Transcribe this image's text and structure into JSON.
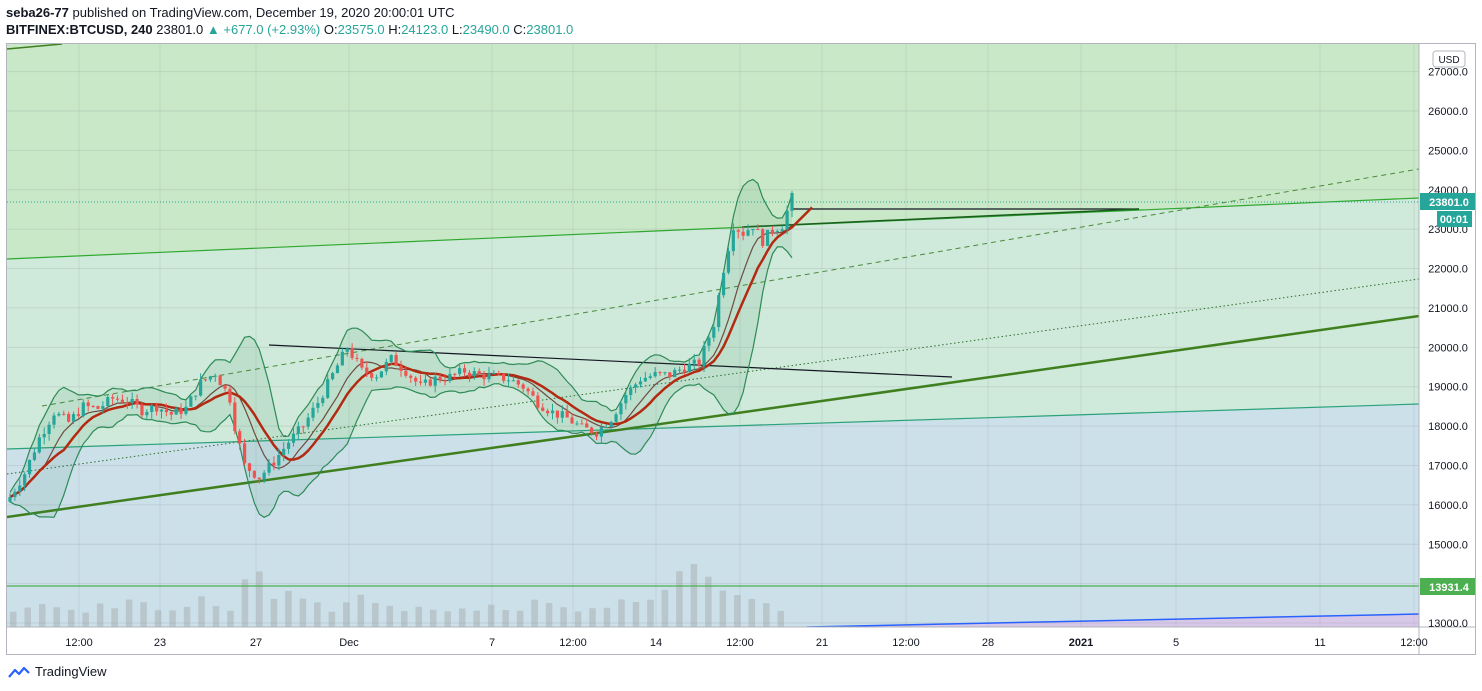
{
  "header": {
    "publisher": "seba26-77",
    "published_text": " published on TradingView.com, December 19, 2020 20:00:01 UTC",
    "symbol": "BITFINEX:BTCUSD, 240",
    "last": "23801.0",
    "change": "▲ +677.0 (+2.93%)",
    "o_label": "O:",
    "o_value": "23575.0",
    "h_label": "H:",
    "h_value": "24123.0",
    "l_label": "L:",
    "l_value": "23490.0",
    "c_label": "C:",
    "c_value": "23801.0"
  },
  "footer": {
    "brand": "TradingView",
    "logo_icon": "tradingview-logo-icon"
  },
  "colors": {
    "up": "#26a69a",
    "down": "#ef5350",
    "price_label_bg": "#26a69a",
    "support_label_bg": "#4caf50",
    "ma_slow": "#b22a12",
    "ma_fast": "#6d4c41",
    "bb": "#2e8b57",
    "trendline": "#3f7f1e"
  },
  "chart_data": {
    "type": "candlestick",
    "currency": "USD",
    "ylim": [
      12900,
      27700
    ],
    "y_ticks": [
      "13000.0",
      "14000.0",
      "15000.0",
      "16000.0",
      "17000.0",
      "18000.0",
      "19000.0",
      "20000.0",
      "21000.0",
      "22000.0",
      "23000.0",
      "24000.0",
      "25000.0",
      "26000.0",
      "27000.0"
    ],
    "x_ticks": [
      "12:00",
      "23",
      "27",
      "Dec",
      "7",
      "12:00",
      "14",
      "12:00",
      "21",
      "12:00",
      "28",
      "2021",
      "5",
      "11",
      "12:00"
    ],
    "last_price": "23801.0",
    "countdown": "00:01",
    "horizontal_level": "13931.4",
    "price_path": [
      [
        0,
        16200
      ],
      [
        3,
        16800
      ],
      [
        6,
        17700
      ],
      [
        9,
        18350
      ],
      [
        12,
        18100
      ],
      [
        15,
        18500
      ],
      [
        18,
        18450
      ],
      [
        21,
        18700
      ],
      [
        24,
        18650
      ],
      [
        27,
        18400
      ],
      [
        30,
        18500
      ],
      [
        33,
        18300
      ],
      [
        36,
        18450
      ],
      [
        39,
        19100
      ],
      [
        42,
        19350
      ],
      [
        45,
        18700
      ],
      [
        46,
        18000
      ],
      [
        48,
        17000
      ],
      [
        51,
        16700
      ],
      [
        54,
        17100
      ],
      [
        57,
        17600
      ],
      [
        60,
        18000
      ],
      [
        63,
        18600
      ],
      [
        66,
        19300
      ],
      [
        69,
        20000
      ],
      [
        72,
        19400
      ],
      [
        75,
        19300
      ],
      [
        78,
        19700
      ],
      [
        81,
        19400
      ],
      [
        84,
        19000
      ],
      [
        87,
        19200
      ],
      [
        90,
        19250
      ],
      [
        93,
        19400
      ],
      [
        96,
        19300
      ],
      [
        99,
        19250
      ],
      [
        102,
        19200
      ],
      [
        105,
        19000
      ],
      [
        108,
        18600
      ],
      [
        111,
        18350
      ],
      [
        114,
        18200
      ],
      [
        117,
        17950
      ],
      [
        120,
        17850
      ],
      [
        123,
        18200
      ],
      [
        126,
        18800
      ],
      [
        129,
        19200
      ],
      [
        132,
        19300
      ],
      [
        135,
        19300
      ],
      [
        138,
        19500
      ],
      [
        141,
        19600
      ],
      [
        144,
        20600
      ],
      [
        146,
        22000
      ],
      [
        148,
        23100
      ],
      [
        150,
        22900
      ],
      [
        152,
        23100
      ],
      [
        154,
        22700
      ],
      [
        156,
        23000
      ],
      [
        158,
        23100
      ],
      [
        160,
        23801
      ]
    ],
    "volumes": [
      3,
      4,
      6,
      5,
      4,
      3,
      5,
      4,
      6,
      5,
      3,
      4,
      5,
      7,
      5,
      3,
      12,
      14,
      7,
      9,
      6,
      5,
      4,
      6,
      8,
      5,
      4,
      3,
      5,
      4,
      3,
      4,
      3,
      5,
      4,
      3,
      6,
      5,
      4,
      3,
      4,
      5,
      6,
      5,
      7,
      9,
      14,
      16,
      13,
      9,
      8,
      7,
      6,
      4
    ]
  }
}
